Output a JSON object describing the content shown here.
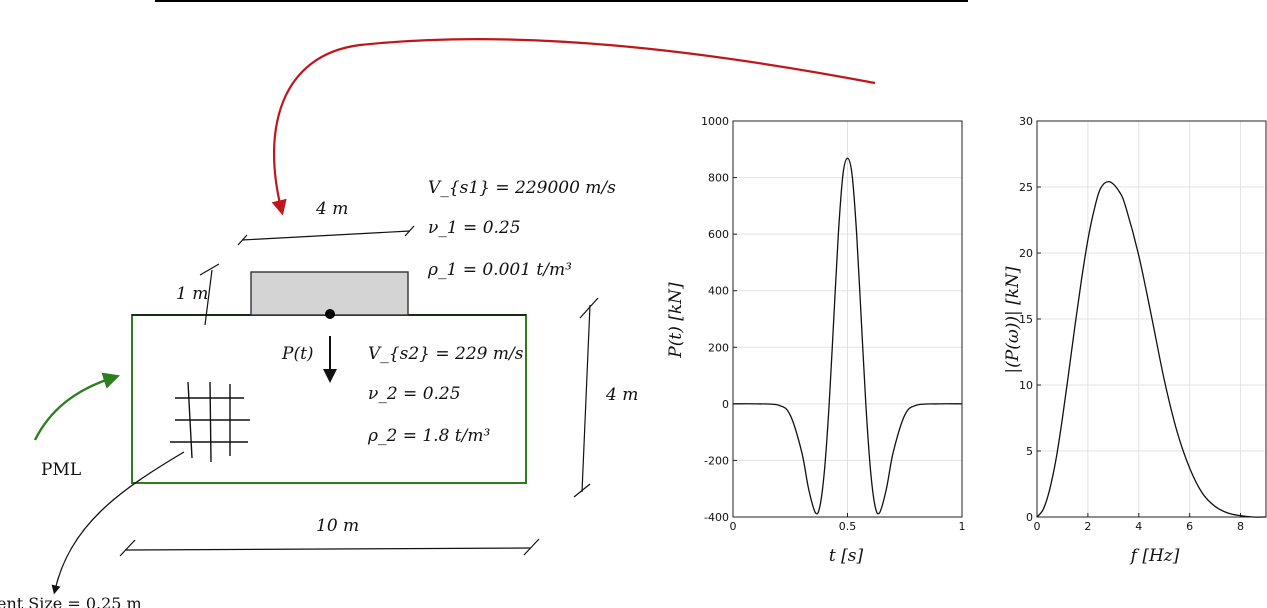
{
  "diagram": {
    "structure_width": "4 m",
    "structure_height": "1 m",
    "domain_width": "10 m",
    "domain_depth": "4 m",
    "structure_props": [
      "V_{s1} = 229000 m/s",
      "ν_1 = 0.25",
      "ρ_1 = 0.001 t/m³"
    ],
    "soil_props": [
      "V_{s2} = 229 m/s",
      "ν_2 = 0.25",
      "ρ_2 = 1.8 t/m³"
    ],
    "load_label": "P(t)",
    "pml_label": "PML",
    "element_size_label": "ent Size = 0.25 m",
    "colors": {
      "pml_boundary": "#2e7d1f",
      "arrow_red": "#c0161b",
      "arrow_green": "#2e7d1f",
      "structure_fill": "#d4d4d4"
    }
  },
  "chart_data": [
    {
      "type": "line",
      "title": "",
      "xlabel": "t [s]",
      "ylabel": "P(t) [kN]",
      "xlim": [
        0,
        1
      ],
      "ylim": [
        -400,
        1000
      ],
      "xticks": [
        0,
        0.5,
        1
      ],
      "yticks": [
        -400,
        -200,
        0,
        200,
        400,
        600,
        800,
        1000
      ],
      "grid": true,
      "series": [
        {
          "x": [
            0,
            0.1,
            0.2,
            0.25,
            0.3,
            0.33,
            0.36,
            0.38,
            0.4,
            0.42,
            0.44,
            0.46,
            0.48,
            0.5,
            0.52,
            0.54,
            0.56,
            0.58,
            0.6,
            0.62,
            0.64,
            0.67,
            0.7,
            0.75,
            0.8,
            0.9,
            1.0
          ],
          "y": [
            0,
            0,
            -5,
            -40,
            -170,
            -300,
            -385,
            -360,
            -230,
            0,
            300,
            600,
            810,
            868,
            810,
            600,
            300,
            0,
            -230,
            -360,
            -385,
            -300,
            -170,
            -40,
            -5,
            0,
            0
          ]
        }
      ]
    },
    {
      "type": "line",
      "title": "",
      "xlabel": "f [Hz]",
      "ylabel": "|(P(ω))| [kN]",
      "xlim": [
        0,
        9
      ],
      "ylim": [
        0,
        30
      ],
      "xticks": [
        0,
        2,
        4,
        6,
        8
      ],
      "yticks": [
        0,
        5,
        10,
        15,
        20,
        25,
        30
      ],
      "grid": true,
      "series": [
        {
          "x": [
            0,
            0.25,
            0.5,
            0.75,
            1.0,
            1.25,
            1.5,
            1.75,
            2.0,
            2.25,
            2.5,
            2.85,
            3.25,
            3.5,
            4.0,
            4.5,
            5.0,
            5.5,
            6.0,
            6.5,
            7.0,
            7.5,
            8.0,
            8.5,
            9.0
          ],
          "y": [
            0,
            0.6,
            2.1,
            4.4,
            7.5,
            11.0,
            14.6,
            18.0,
            21.0,
            23.3,
            24.9,
            25.4,
            24.6,
            23.4,
            19.8,
            15.2,
            10.4,
            6.5,
            3.7,
            1.8,
            0.8,
            0.3,
            0.1,
            0.0,
            0.0
          ]
        }
      ]
    }
  ]
}
